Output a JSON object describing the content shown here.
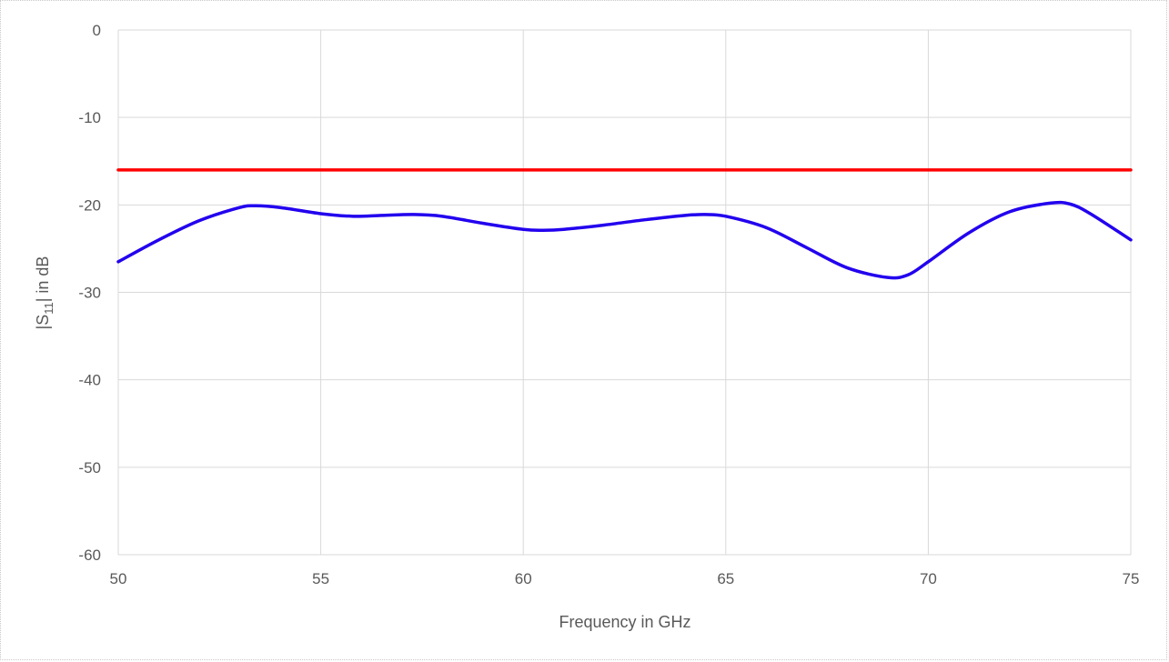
{
  "chart_data": {
    "type": "line",
    "title": "",
    "xlabel": "Frequency in GHz",
    "ylabel": {
      "prefix": "|S",
      "subscript": "11",
      "suffix": "| in dB"
    },
    "xlim": [
      50,
      75
    ],
    "ylim": [
      -60,
      0
    ],
    "xticks": [
      "50",
      "55",
      "60",
      "65",
      "70",
      "75"
    ],
    "yticks": [
      "0",
      "-10",
      "-20",
      "-30",
      "-40",
      "-50",
      "-60"
    ],
    "grid": true,
    "legend": "none",
    "series": [
      {
        "color": "#2200ee",
        "x": [
          50,
          51,
          52,
          53,
          53.4,
          54,
          55,
          55.8,
          56.5,
          57.3,
          58,
          59,
          60,
          60.5,
          61,
          62,
          63,
          64,
          64.5,
          65,
          66,
          67,
          68,
          69,
          69.5,
          70,
          71,
          72,
          73,
          73.5,
          74,
          75
        ],
        "y": [
          -26.5,
          -24,
          -21.8,
          -20.3,
          -20.1,
          -20.3,
          -21,
          -21.3,
          -21.2,
          -21.1,
          -21.3,
          -22.1,
          -22.8,
          -22.9,
          -22.8,
          -22.3,
          -21.7,
          -21.2,
          -21.1,
          -21.3,
          -22.6,
          -24.9,
          -27.2,
          -28.3,
          -28.0,
          -26.5,
          -23.2,
          -20.8,
          -19.8,
          -19.9,
          -21.0,
          -24.0
        ]
      },
      {
        "color": "#ff0000",
        "x": [
          50,
          75
        ],
        "y": [
          -16,
          -16
        ]
      }
    ]
  }
}
